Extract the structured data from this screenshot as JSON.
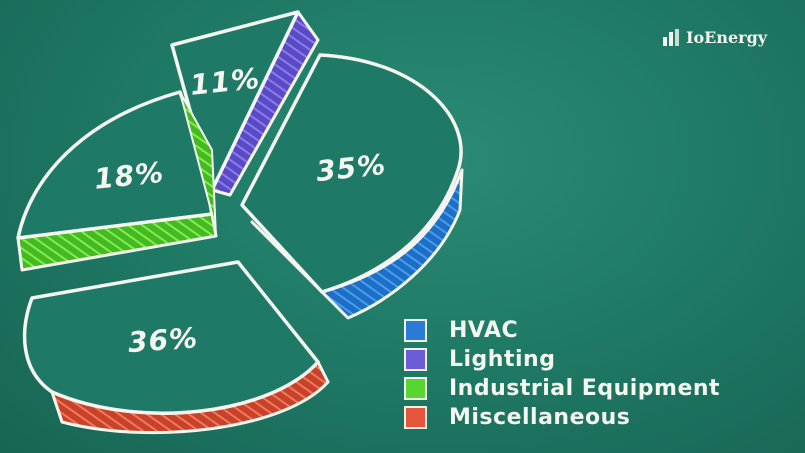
{
  "brand": {
    "name": "IoEnergy",
    "logo_icon": "bars-logo-icon"
  },
  "colors": {
    "board": "#1f7a66",
    "chalk": "#f4f6ef",
    "hvac": "#2a7bd6",
    "lighting": "#6b5cd6",
    "industrial": "#58d630",
    "misc": "#e4553a"
  },
  "chart_data": {
    "type": "pie",
    "title": "",
    "categories": [
      "HVAC",
      "Lighting",
      "Industrial Equipment",
      "Miscellaneous"
    ],
    "values": [
      35,
      11,
      18,
      36
    ],
    "labels": [
      "35%",
      "11%",
      "18%",
      "36%"
    ],
    "legend_position": "bottom-right"
  }
}
